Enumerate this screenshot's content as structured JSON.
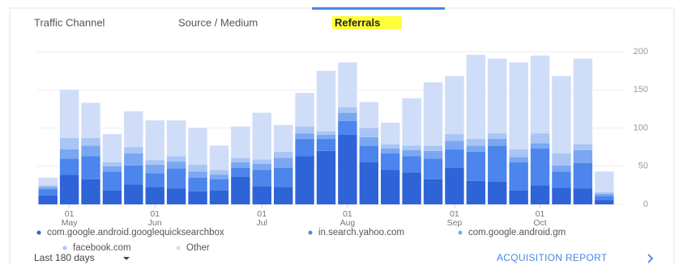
{
  "tabs": [
    "Traffic Channel",
    "Source / Medium",
    "Referrals"
  ],
  "active_tab": 2,
  "chart_data": {
    "type": "stacked_bar",
    "categories": [
      null,
      [
        "01",
        "May"
      ],
      null,
      null,
      null,
      [
        "01",
        "Jun"
      ],
      null,
      null,
      null,
      null,
      [
        "01",
        "Jul"
      ],
      null,
      null,
      null,
      [
        "01",
        "Aug"
      ],
      null,
      null,
      null,
      null,
      [
        "01",
        "Sep"
      ],
      null,
      null,
      null,
      [
        "01",
        "Oct"
      ],
      null,
      null,
      null
    ],
    "series": [
      {
        "name": "com.google.android.googlequicksearchbox",
        "color": "#2f63d8",
        "values": [
          12,
          39,
          33,
          18,
          26,
          23,
          21,
          17,
          18,
          36,
          24,
          23,
          63,
          70,
          91,
          55,
          45,
          42,
          33,
          48,
          31,
          30,
          18,
          25,
          22,
          21,
          6
        ]
      },
      {
        "name": "in.search.yahoo.com",
        "color": "#4c85ec",
        "values": [
          8,
          21,
          30,
          25,
          25,
          18,
          26,
          18,
          15,
          12,
          21,
          25,
          23,
          16,
          18,
          22,
          22,
          21,
          27,
          24,
          38,
          47,
          37,
          48,
          21,
          33,
          5
        ]
      },
      {
        "name": "com.google.android.gm",
        "color": "#7aa7f1",
        "values": [
          3,
          12,
          14,
          7,
          16,
          11,
          9,
          8,
          6,
          7,
          8,
          13,
          7,
          5,
          11,
          11,
          6,
          8,
          10,
          11,
          8,
          9,
          7,
          7,
          8,
          17,
          3
        ]
      },
      {
        "name": "facebook.com",
        "color": "#a8c5f5",
        "values": [
          2,
          15,
          10,
          5,
          8,
          6,
          7,
          9,
          6,
          6,
          6,
          8,
          9,
          5,
          7,
          12,
          6,
          6,
          7,
          9,
          9,
          7,
          10,
          13,
          16,
          8,
          2
        ]
      },
      {
        "name": "Other",
        "color": "#cfddf8",
        "values": [
          10,
          63,
          46,
          37,
          47,
          52,
          47,
          48,
          32,
          41,
          61,
          35,
          44,
          79,
          59,
          34,
          28,
          62,
          83,
          76,
          110,
          98,
          114,
          102,
          101,
          112,
          27
        ]
      }
    ],
    "ylim": [
      0,
      200
    ],
    "yticks": [
      0,
      50,
      100,
      150,
      200
    ],
    "grid": true
  },
  "footer": {
    "range": "Last 180 days",
    "link": "ACQUISITION REPORT"
  }
}
